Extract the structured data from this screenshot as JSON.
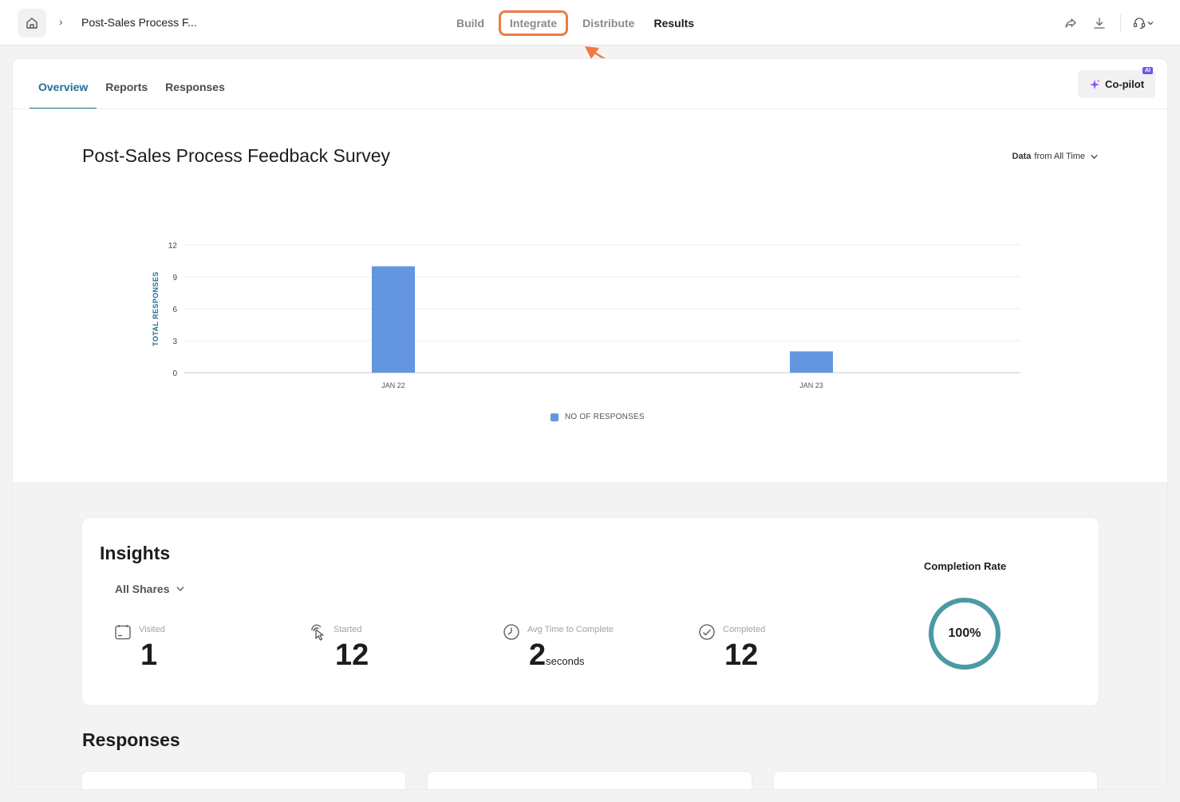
{
  "topbar": {
    "breadcrumb_title": "Post-Sales Process F...",
    "breadcrumb_separator": "›",
    "nav": [
      "Build",
      "Integrate",
      "Distribute",
      "Results"
    ],
    "active_nav": "Results",
    "highlighted_nav": "Integrate",
    "icons": [
      "home-icon",
      "share-icon",
      "download-icon",
      "headset-icon",
      "chevron-down-icon"
    ]
  },
  "subtabs": [
    "Overview",
    "Reports",
    "Responses"
  ],
  "copilot": {
    "label": "Co-pilot",
    "badge": "AI"
  },
  "survey": {
    "title": "Post-Sales Process Feedback Survey",
    "range_prefix": "Data",
    "range_value": "from All Time"
  },
  "chart_data": {
    "type": "bar",
    "categories": [
      "JAN 22",
      "JAN 23"
    ],
    "series": [
      {
        "name": "NO OF RESPONSES",
        "values": [
          10,
          2
        ]
      }
    ],
    "ylabel": "TOTAL RESPONSES",
    "xlabel": "",
    "ylim": [
      0,
      12
    ],
    "yticks": [
      0,
      3,
      6,
      9,
      12
    ],
    "grid": true,
    "legend": "bottom",
    "color": "#6495e0"
  },
  "insights": {
    "title": "Insights",
    "filter": "All Shares",
    "stats": [
      {
        "label": "Visited",
        "value": "1",
        "unit": "",
        "icon": "calendar-icon"
      },
      {
        "label": "Started",
        "value": "12",
        "unit": "",
        "icon": "pointer-click-icon"
      },
      {
        "label": "Avg Time to Complete",
        "value": "2",
        "unit": "seconds",
        "icon": "clock-icon"
      },
      {
        "label": "Completed",
        "value": "12",
        "unit": "",
        "icon": "check-circle-icon"
      }
    ],
    "completion_title": "Completion Rate",
    "completion_value": "100%",
    "completion_fraction": 1.0,
    "accent": "#4a9aa6"
  },
  "responses": {
    "title": "Responses"
  },
  "colors": {
    "accent": "#1f6f9a",
    "highlight": "#f07a45",
    "bar": "#6495e0"
  }
}
